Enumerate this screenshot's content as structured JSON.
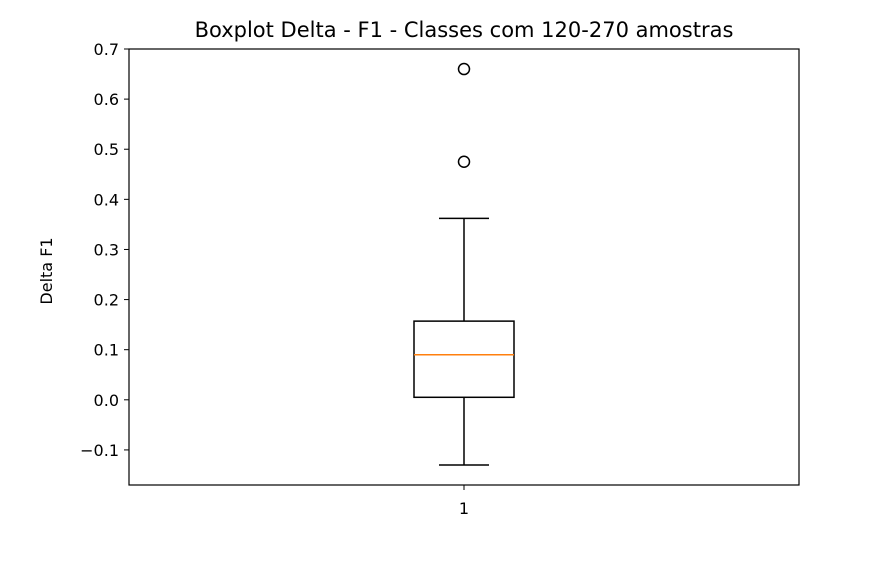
{
  "chart_data": {
    "type": "boxplot",
    "title": "Boxplot Delta - F1 - Classes com 120-270 amostras",
    "xlabel": "",
    "ylabel": "Delta F1",
    "ylim": [
      -0.17,
      0.7
    ],
    "yticks": [
      -0.1,
      0.0,
      0.1,
      0.2,
      0.3,
      0.4,
      0.5,
      0.6,
      0.7
    ],
    "ytick_labels": [
      "−0.1",
      "0.0",
      "0.1",
      "0.2",
      "0.3",
      "0.4",
      "0.5",
      "0.6",
      "0.7"
    ],
    "categories": [
      "1"
    ],
    "boxes": [
      {
        "category": "1",
        "whisker_low": -0.13,
        "q1": 0.005,
        "median": 0.09,
        "q3": 0.157,
        "whisker_high": 0.362,
        "outliers": [
          0.475,
          0.66
        ]
      }
    ],
    "grid": false,
    "colors": {
      "box": "#000000",
      "median": "#ff7f0e",
      "outlier": "#000000"
    }
  }
}
